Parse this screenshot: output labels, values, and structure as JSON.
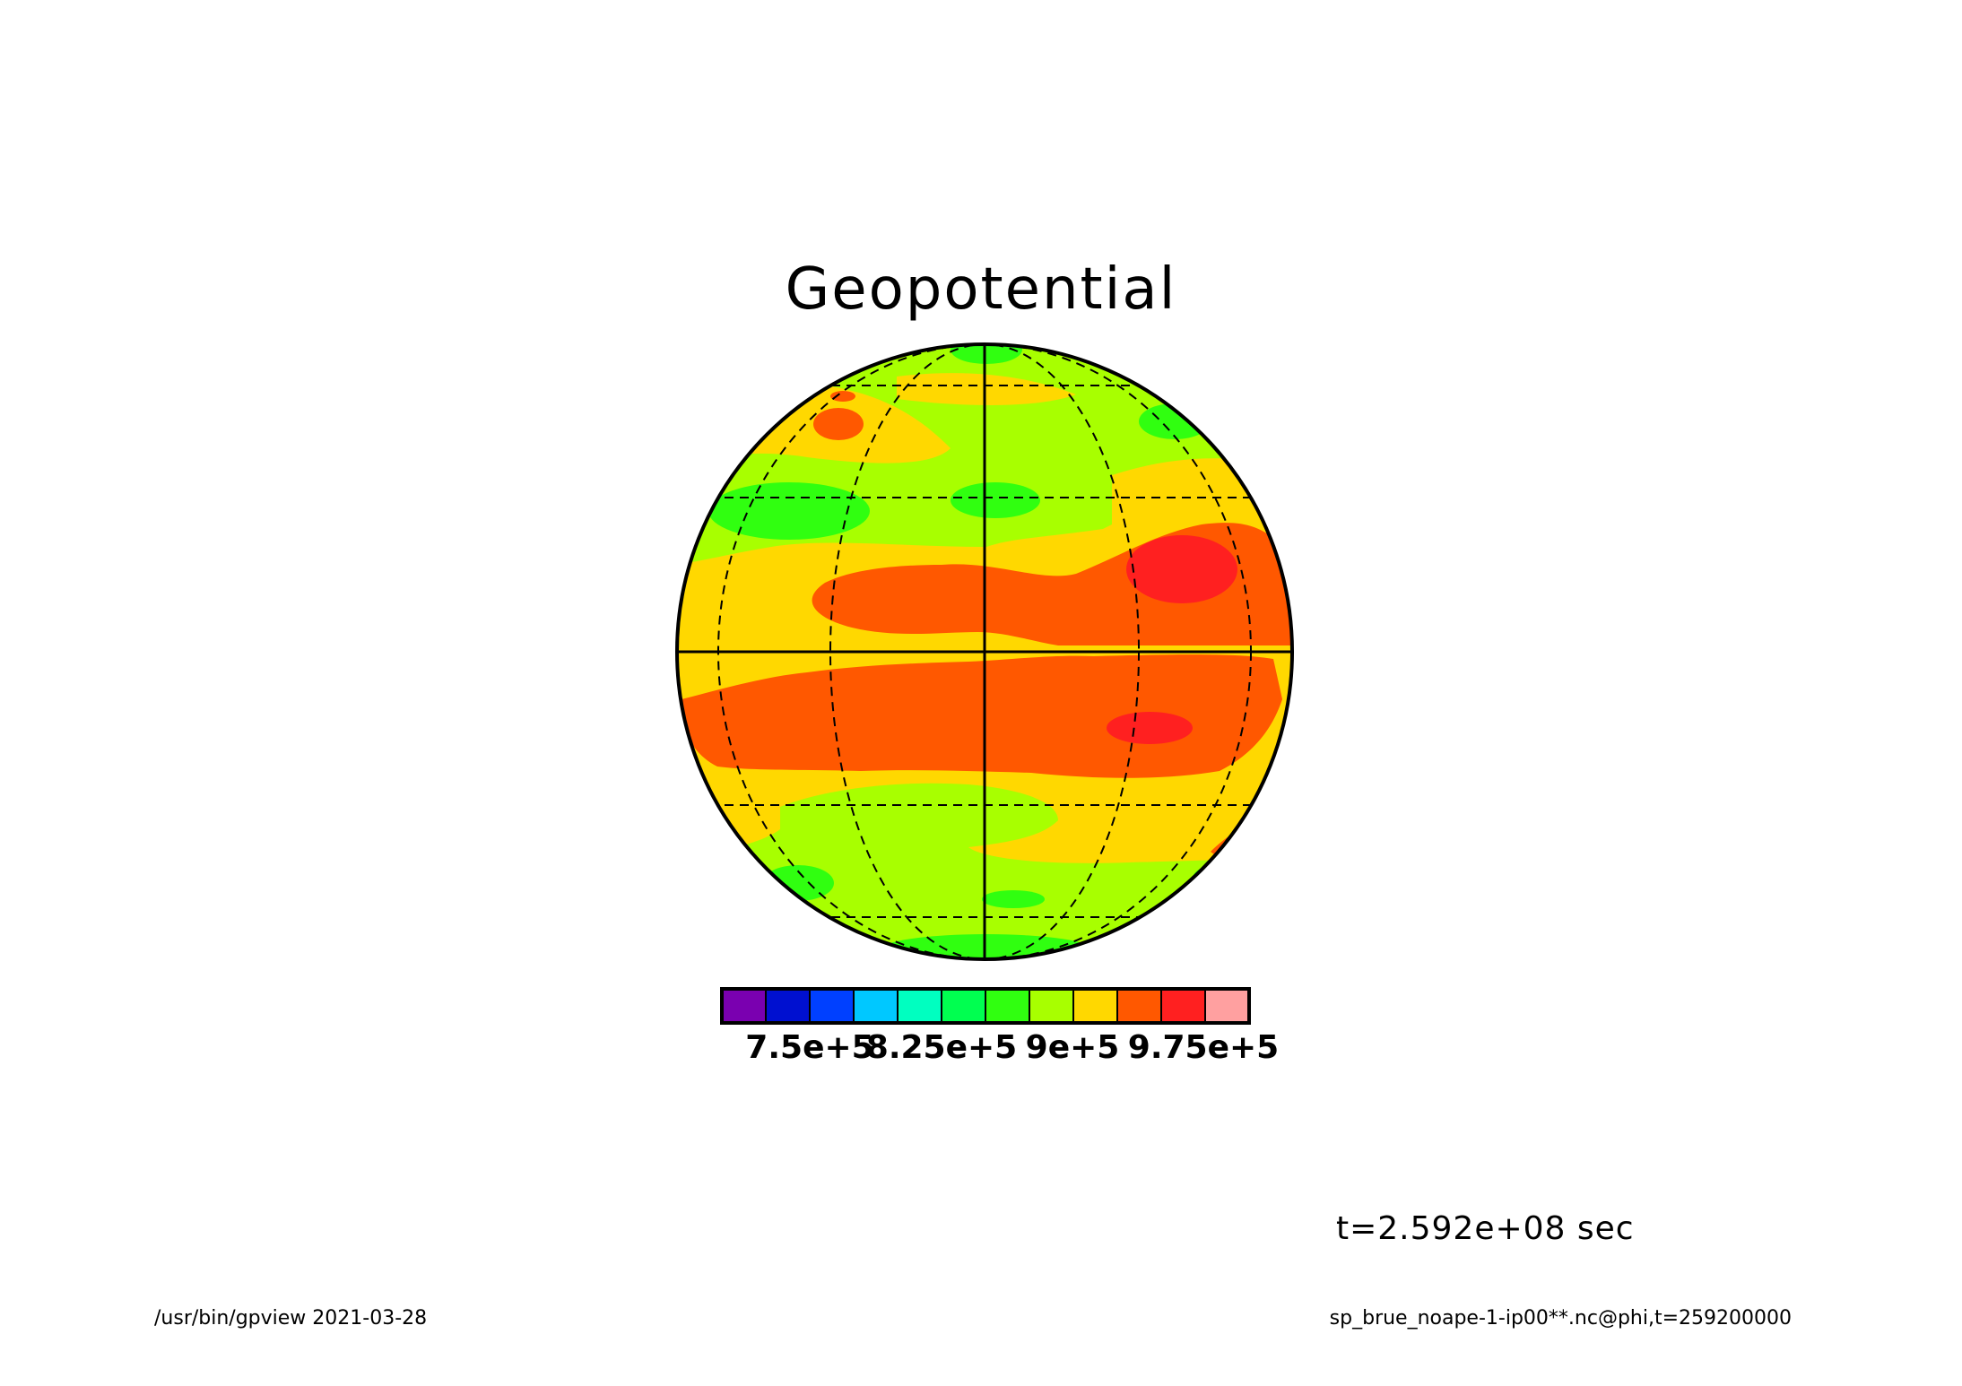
{
  "title": "Geopotential",
  "time_label": "t=2.592e+08 sec",
  "footer_left": "/usr/bin/gpview  2021-03-28",
  "footer_right": "sp_brue_noape-1-ip00**.nc@phi,t=259200000",
  "colorbar": {
    "colors": [
      "#7a00b0",
      "#0010d0",
      "#0040ff",
      "#00c8ff",
      "#00ffc0",
      "#00ff50",
      "#30ff10",
      "#a8ff00",
      "#ffd800",
      "#ff5800",
      "#ff2020",
      "#ffa0a0"
    ],
    "tick_labels": [
      "7.5e+5",
      "8.25e+5",
      "9e+5",
      "9.75e+5"
    ]
  },
  "field_colors": {
    "green": "#30ff10",
    "yellowgreen": "#a8ff00",
    "yellow": "#ffd800",
    "orange": "#ff5800",
    "red": "#ff2020"
  }
}
